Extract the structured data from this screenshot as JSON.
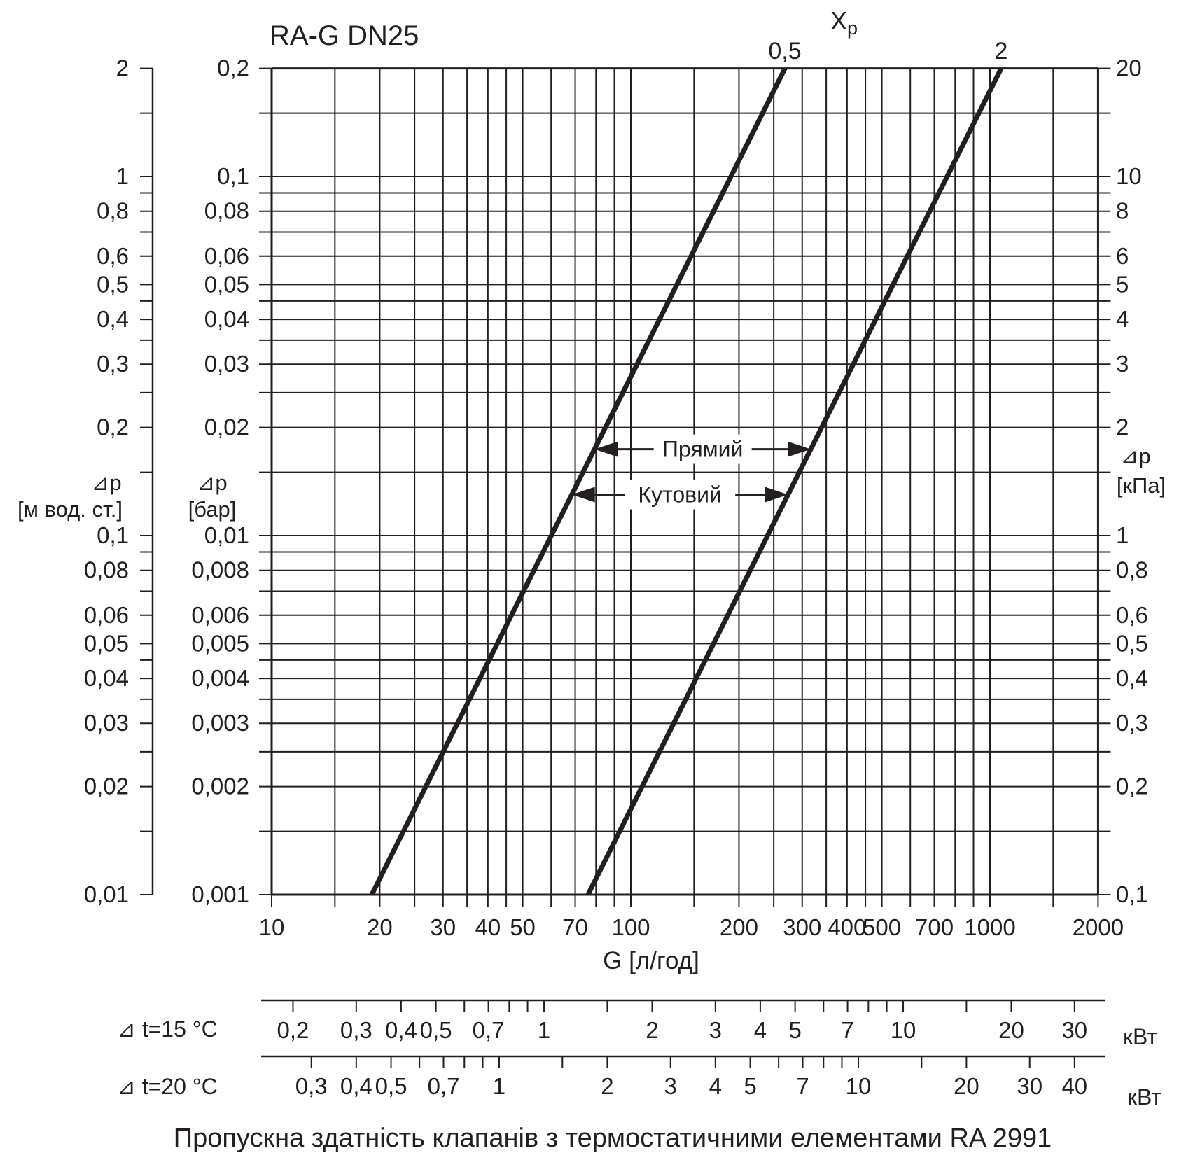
{
  "title": "RA-G DN25",
  "caption": "Пропускна здатність клапанів з термостатичними елементами RA 2991",
  "colors": {
    "ink": "#231f20",
    "background": "#ffffff"
  },
  "chart_data": {
    "type": "line",
    "title": "RA-G DN25",
    "xp_title": {
      "main": "X",
      "sub": "p"
    },
    "x_axis": {
      "label": "G [л/год]",
      "scale": "log",
      "min": 10,
      "max": 2000,
      "gridlines": [
        10,
        15,
        20,
        25,
        30,
        35,
        40,
        45,
        50,
        60,
        70,
        80,
        90,
        100,
        150,
        200,
        250,
        300,
        350,
        400,
        450,
        500,
        600,
        700,
        800,
        900,
        1000,
        1500,
        2000
      ],
      "ticks": [
        {
          "value": 10,
          "label": "10"
        },
        {
          "value": 20,
          "label": "20"
        },
        {
          "value": 30,
          "label": "30"
        },
        {
          "value": 40,
          "label": "40"
        },
        {
          "value": 50,
          "label": "50"
        },
        {
          "value": 70,
          "label": "70"
        },
        {
          "value": 100,
          "label": "100"
        },
        {
          "value": 200,
          "label": "200"
        },
        {
          "value": 300,
          "label": "300"
        },
        {
          "value": 400,
          "label": "400"
        },
        {
          "value": 500,
          "label": "500"
        },
        {
          "value": 700,
          "label": "700"
        },
        {
          "value": 1000,
          "label": "1000"
        },
        {
          "value": 2000,
          "label": "2000"
        }
      ]
    },
    "y_gridlines_kpa": [
      0.1,
      0.15,
      0.2,
      0.25,
      0.3,
      0.35,
      0.4,
      0.45,
      0.5,
      0.6,
      0.7,
      0.8,
      0.9,
      1,
      1.5,
      2,
      2.5,
      3,
      3.5,
      4,
      4.5,
      5,
      6,
      7,
      8,
      9,
      10,
      15,
      20
    ],
    "y_axes": {
      "kpa": {
        "symbol": "⊿p",
        "unit": "[кПа]",
        "side": "right",
        "scale": "log",
        "min": 0.1,
        "max": 20,
        "ticks": [
          {
            "value": 20,
            "label": "20"
          },
          {
            "value": 10,
            "label": "10"
          },
          {
            "value": 8,
            "label": "8"
          },
          {
            "value": 6,
            "label": "6"
          },
          {
            "value": 5,
            "label": "5"
          },
          {
            "value": 4,
            "label": "4"
          },
          {
            "value": 3,
            "label": "3"
          },
          {
            "value": 2,
            "label": "2"
          },
          {
            "value": 1,
            "label": "1"
          },
          {
            "value": 0.8,
            "label": "0,8"
          },
          {
            "value": 0.6,
            "label": "0,6"
          },
          {
            "value": 0.5,
            "label": "0,5"
          },
          {
            "value": 0.4,
            "label": "0,4"
          },
          {
            "value": 0.3,
            "label": "0,3"
          },
          {
            "value": 0.2,
            "label": "0,2"
          },
          {
            "value": 0.1,
            "label": "0,1"
          }
        ]
      },
      "bar": {
        "symbol": "⊿p",
        "unit": "[бар]",
        "side": "left-inner",
        "ticks": [
          {
            "value": 20,
            "label": "0,2"
          },
          {
            "value": 10,
            "label": "0,1"
          },
          {
            "value": 8,
            "label": "0,08"
          },
          {
            "value": 6,
            "label": "0,06"
          },
          {
            "value": 5,
            "label": "0,05"
          },
          {
            "value": 4,
            "label": "0,04"
          },
          {
            "value": 3,
            "label": "0,03"
          },
          {
            "value": 2,
            "label": "0,02"
          },
          {
            "value": 1,
            "label": "0,01"
          },
          {
            "value": 0.8,
            "label": "0,008"
          },
          {
            "value": 0.6,
            "label": "0,006"
          },
          {
            "value": 0.5,
            "label": "0,005"
          },
          {
            "value": 0.4,
            "label": "0,004"
          },
          {
            "value": 0.3,
            "label": "0,003"
          },
          {
            "value": 0.2,
            "label": "0,002"
          },
          {
            "value": 0.1,
            "label": "0,001"
          }
        ]
      },
      "mh2o": {
        "symbol": "⊿p",
        "unit": "[м вод. ст.]",
        "side": "left-outer",
        "ticks": [
          {
            "value": 20,
            "label": "2"
          },
          {
            "value": 10,
            "label": "1"
          },
          {
            "value": 8,
            "label": "0,8"
          },
          {
            "value": 6,
            "label": "0,6"
          },
          {
            "value": 5,
            "label": "0,5"
          },
          {
            "value": 4,
            "label": "0,4"
          },
          {
            "value": 3,
            "label": "0,3"
          },
          {
            "value": 2,
            "label": "0,2"
          },
          {
            "value": 1,
            "label": "0,1"
          },
          {
            "value": 0.8,
            "label": "0,08"
          },
          {
            "value": 0.6,
            "label": "0,06"
          },
          {
            "value": 0.5,
            "label": "0,05"
          },
          {
            "value": 0.4,
            "label": "0,04"
          },
          {
            "value": 0.3,
            "label": "0,03"
          },
          {
            "value": 0.2,
            "label": "0,02"
          },
          {
            "value": 0.1,
            "label": "0,01"
          }
        ]
      }
    },
    "series": [
      {
        "name": "0,5",
        "xp_k": 0.5,
        "points": [
          {
            "g_lh": 19,
            "dp_kpa": 0.1
          },
          {
            "g_lh": 268.7,
            "dp_kpa": 20
          }
        ]
      },
      {
        "name": "2",
        "xp_k": 2,
        "points": [
          {
            "g_lh": 76,
            "dp_kpa": 0.1
          },
          {
            "g_lh": 1074.9,
            "dp_kpa": 20
          }
        ]
      }
    ],
    "annotations": [
      {
        "label": "Прямий",
        "dp_kpa": 1.74
      },
      {
        "label": "Кутовий",
        "dp_kpa": 1.3
      }
    ]
  },
  "power_scales": [
    {
      "row_label": "⊿ t=15 °C",
      "unit": "кВт",
      "kw_to_flow_factor": 57.33,
      "ticks": [
        {
          "kw": 0.2,
          "label": "0,2"
        },
        {
          "kw": 0.3,
          "label": "0,3"
        },
        {
          "kw": 0.4,
          "label": "0,4"
        },
        {
          "kw": 0.5,
          "label": "0,5"
        },
        {
          "kw": 0.6,
          "label": ""
        },
        {
          "kw": 0.7,
          "label": "0,7"
        },
        {
          "kw": 0.8,
          "label": ""
        },
        {
          "kw": 0.9,
          "label": ""
        },
        {
          "kw": 1,
          "label": "1"
        },
        {
          "kw": 1.5,
          "label": ""
        },
        {
          "kw": 2,
          "label": "2"
        },
        {
          "kw": 3,
          "label": "3"
        },
        {
          "kw": 4,
          "label": "4"
        },
        {
          "kw": 5,
          "label": "5"
        },
        {
          "kw": 6,
          "label": ""
        },
        {
          "kw": 7,
          "label": "7"
        },
        {
          "kw": 8,
          "label": ""
        },
        {
          "kw": 9,
          "label": ""
        },
        {
          "kw": 10,
          "label": "10"
        },
        {
          "kw": 15,
          "label": ""
        },
        {
          "kw": 20,
          "label": "20"
        },
        {
          "kw": 30,
          "label": "30"
        }
      ]
    },
    {
      "row_label": "⊿ t=20 °C",
      "unit": "кВт",
      "kw_to_flow_factor": 43.0,
      "ticks": [
        {
          "kw": 0.3,
          "label": "0,3"
        },
        {
          "kw": 0.4,
          "label": "0,4"
        },
        {
          "kw": 0.5,
          "label": "0,5"
        },
        {
          "kw": 0.6,
          "label": ""
        },
        {
          "kw": 0.7,
          "label": "0,7"
        },
        {
          "kw": 0.8,
          "label": ""
        },
        {
          "kw": 0.9,
          "label": ""
        },
        {
          "kw": 1,
          "label": "1"
        },
        {
          "kw": 1.5,
          "label": ""
        },
        {
          "kw": 2,
          "label": "2"
        },
        {
          "kw": 3,
          "label": "3"
        },
        {
          "kw": 4,
          "label": "4"
        },
        {
          "kw": 5,
          "label": "5"
        },
        {
          "kw": 6,
          "label": ""
        },
        {
          "kw": 7,
          "label": "7"
        },
        {
          "kw": 8,
          "label": ""
        },
        {
          "kw": 9,
          "label": ""
        },
        {
          "kw": 10,
          "label": "10"
        },
        {
          "kw": 15,
          "label": ""
        },
        {
          "kw": 20,
          "label": "20"
        },
        {
          "kw": 30,
          "label": "30"
        },
        {
          "kw": 40,
          "label": "40"
        }
      ]
    }
  ]
}
